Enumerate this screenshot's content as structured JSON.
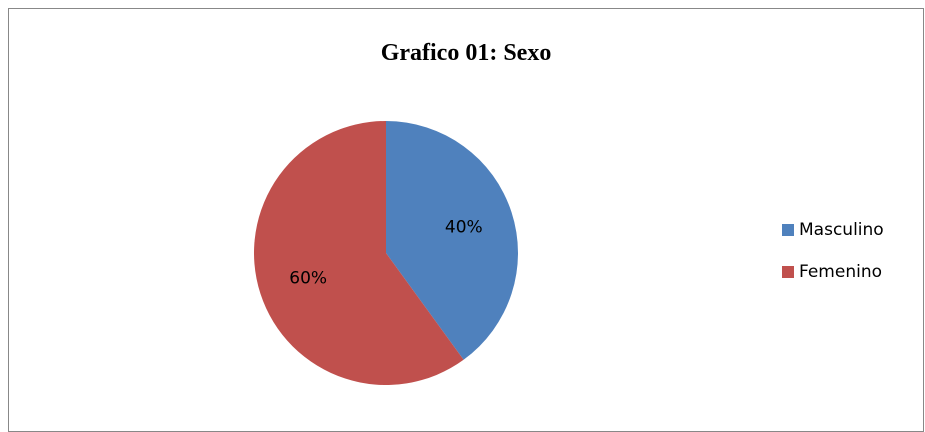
{
  "chart_data": {
    "type": "pie",
    "title": "Grafico 01: Sexo",
    "categories": [
      "Masculino",
      "Femenino"
    ],
    "values": [
      40,
      60
    ],
    "value_labels": [
      "40%",
      "60%"
    ],
    "colors": [
      "#4f81bd",
      "#c0504d"
    ],
    "legend": "right"
  }
}
